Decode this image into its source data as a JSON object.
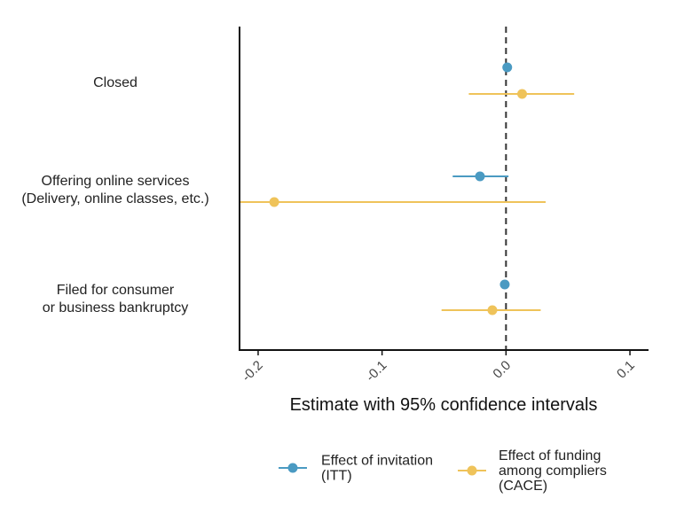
{
  "chart_data": {
    "type": "scatter",
    "subtype": "coefficient-plot",
    "xlabel": "Estimate with 95% confidence intervals",
    "xlim": [
      -0.215,
      0.115
    ],
    "xticks": [
      -0.2,
      -0.1,
      0.0,
      0.1
    ],
    "xtick_labels": [
      "-0.2",
      "-0.1",
      "0.0",
      "0.1"
    ],
    "reference_line": 0,
    "categories": [
      [
        "Closed"
      ],
      [
        "Offering online services",
        "(Delivery, online classes, etc.)"
      ],
      [
        "Filed for consumer",
        "or business bankruptcy"
      ]
    ],
    "series": [
      {
        "name": "Effect of invitation (ITT)",
        "legend_lines": [
          "Effect of invitation",
          "(ITT)"
        ],
        "color": "#4A9AC2",
        "points": [
          {
            "estimate": 0.001,
            "ci_low": -0.001,
            "ci_high": 0.004
          },
          {
            "estimate": -0.021,
            "ci_low": -0.043,
            "ci_high": 0.002
          },
          {
            "estimate": -0.001,
            "ci_low": -0.002,
            "ci_high": 0.0
          }
        ]
      },
      {
        "name": "Effect of funding among compliers (CACE)",
        "legend_lines": [
          "Effect of funding",
          "among compliers",
          "(CACE)"
        ],
        "color": "#EFC35A",
        "points": [
          {
            "estimate": 0.013,
            "ci_low": -0.03,
            "ci_high": 0.055
          },
          {
            "estimate": -0.187,
            "ci_low": -0.215,
            "ci_high": 0.032
          },
          {
            "estimate": -0.011,
            "ci_low": -0.052,
            "ci_high": 0.028
          }
        ]
      }
    ],
    "legend_position": "bottom"
  }
}
